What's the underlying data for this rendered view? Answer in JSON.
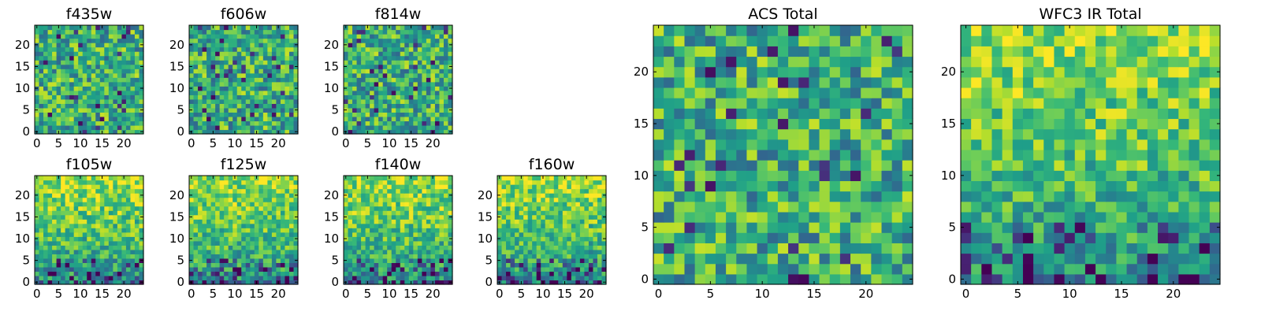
{
  "chart_data": [
    {
      "type": "heatmap",
      "title": "f435w",
      "xlim": [
        0,
        24
      ],
      "ylim": [
        0,
        24
      ],
      "xticks": [
        "0",
        "5",
        "10",
        "15",
        "20"
      ],
      "yticks": [
        "0",
        "5",
        "10",
        "15",
        "20"
      ],
      "colormap": "viridis",
      "pattern": "noise",
      "seed": 11
    },
    {
      "type": "heatmap",
      "title": "f606w",
      "xlim": [
        0,
        24
      ],
      "ylim": [
        0,
        24
      ],
      "xticks": [
        "0",
        "5",
        "10",
        "15",
        "20"
      ],
      "yticks": [
        "0",
        "5",
        "10",
        "15",
        "20"
      ],
      "colormap": "viridis",
      "pattern": "noise",
      "seed": 23
    },
    {
      "type": "heatmap",
      "title": "f814w",
      "xlim": [
        0,
        24
      ],
      "ylim": [
        0,
        24
      ],
      "xticks": [
        "0",
        "5",
        "10",
        "15",
        "20"
      ],
      "yticks": [
        "0",
        "5",
        "10",
        "15",
        "20"
      ],
      "colormap": "viridis",
      "pattern": "noise",
      "seed": 37
    },
    {
      "type": "heatmap",
      "title": "f105w",
      "xlim": [
        0,
        24
      ],
      "ylim": [
        0,
        24
      ],
      "xticks": [
        "0",
        "5",
        "10",
        "15",
        "20"
      ],
      "yticks": [
        "0",
        "5",
        "10",
        "15",
        "20"
      ],
      "colormap": "viridis",
      "pattern": "gradient",
      "seed": 41
    },
    {
      "type": "heatmap",
      "title": "f125w",
      "xlim": [
        0,
        24
      ],
      "ylim": [
        0,
        24
      ],
      "xticks": [
        "0",
        "5",
        "10",
        "15",
        "20"
      ],
      "yticks": [
        "0",
        "5",
        "10",
        "15",
        "20"
      ],
      "colormap": "viridis",
      "pattern": "gradient",
      "seed": 53
    },
    {
      "type": "heatmap",
      "title": "f140w",
      "xlim": [
        0,
        24
      ],
      "ylim": [
        0,
        24
      ],
      "xticks": [
        "0",
        "5",
        "10",
        "15",
        "20"
      ],
      "yticks": [
        "0",
        "5",
        "10",
        "15",
        "20"
      ],
      "colormap": "viridis",
      "pattern": "gradient",
      "seed": 67
    },
    {
      "type": "heatmap",
      "title": "f160w",
      "xlim": [
        0,
        24
      ],
      "ylim": [
        0,
        24
      ],
      "xticks": [
        "0",
        "5",
        "10",
        "15",
        "20"
      ],
      "yticks": [
        "0",
        "5",
        "10",
        "15",
        "20"
      ],
      "colormap": "viridis",
      "pattern": "gradient",
      "seed": 79
    },
    {
      "type": "heatmap",
      "title": "ACS Total",
      "xlim": [
        0,
        24
      ],
      "ylim": [
        0,
        24
      ],
      "xticks": [
        "0",
        "5",
        "10",
        "15",
        "20"
      ],
      "yticks": [
        "0",
        "5",
        "10",
        "15",
        "20"
      ],
      "colormap": "viridis",
      "pattern": "noise",
      "seed": 97
    },
    {
      "type": "heatmap",
      "title": "WFC3 IR Total",
      "xlim": [
        0,
        24
      ],
      "ylim": [
        0,
        24
      ],
      "xticks": [
        "0",
        "5",
        "10",
        "15",
        "20"
      ],
      "yticks": [
        "0",
        "5",
        "10",
        "15",
        "20"
      ],
      "colormap": "viridis",
      "pattern": "gradient",
      "seed": 101
    }
  ]
}
